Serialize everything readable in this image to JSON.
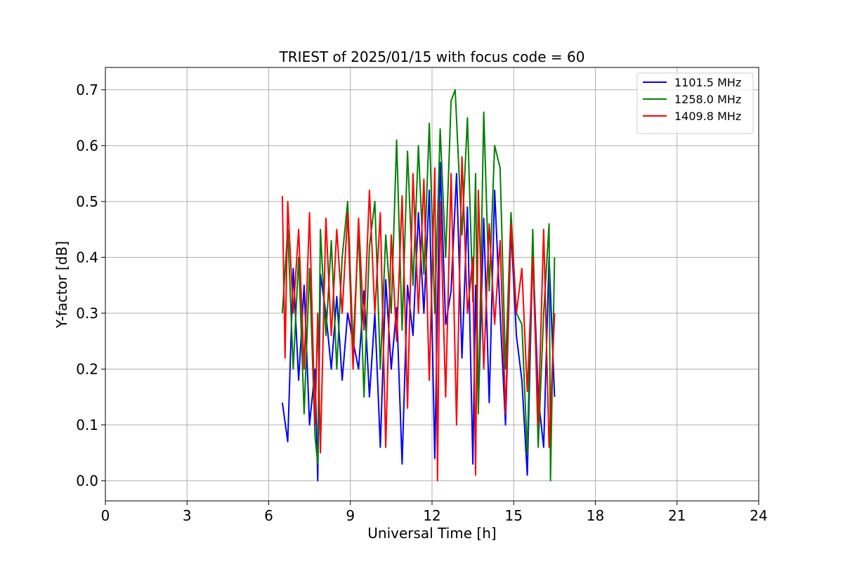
{
  "chart_data": {
    "type": "line",
    "title": "TRIEST of 2025/01/15 with focus code = 60",
    "xlabel": "Universal Time [h]",
    "ylabel": "Y-factor [dB]",
    "xlim": [
      0,
      24
    ],
    "ylim": [
      -0.036,
      0.74
    ],
    "x_ticks": [
      0,
      3,
      6,
      9,
      12,
      15,
      18,
      21,
      24
    ],
    "y_ticks": [
      0.0,
      0.1,
      0.2,
      0.3,
      0.4,
      0.5,
      0.6,
      0.7
    ],
    "y_tick_labels": [
      "0.0",
      "0.1",
      "0.2",
      "0.3",
      "0.4",
      "0.5",
      "0.6",
      "0.7"
    ],
    "grid": true,
    "legend_position": "top-right",
    "series": [
      {
        "name": "1101.5 MHz",
        "color": "#0000ff",
        "x": [
          6.5,
          6.7,
          6.9,
          7.1,
          7.3,
          7.5,
          7.7,
          7.8,
          7.9,
          8.1,
          8.3,
          8.5,
          8.7,
          8.9,
          9.1,
          9.3,
          9.5,
          9.7,
          9.9,
          10.1,
          10.3,
          10.5,
          10.7,
          10.9,
          11.1,
          11.3,
          11.5,
          11.7,
          11.9,
          12.1,
          12.3,
          12.5,
          12.7,
          12.9,
          13.1,
          13.3,
          13.5,
          13.6,
          13.7,
          13.9,
          14.1,
          14.3,
          14.5,
          14.7,
          14.9,
          15.1,
          15.3,
          15.5,
          15.7,
          15.9,
          16.1,
          16.3,
          16.5
        ],
        "y": [
          0.14,
          0.07,
          0.38,
          0.18,
          0.35,
          0.1,
          0.2,
          0.0,
          0.37,
          0.3,
          0.2,
          0.33,
          0.18,
          0.3,
          0.25,
          0.2,
          0.34,
          0.15,
          0.3,
          0.06,
          0.36,
          0.2,
          0.31,
          0.03,
          0.35,
          0.26,
          0.48,
          0.3,
          0.52,
          0.04,
          0.57,
          0.28,
          0.34,
          0.55,
          0.22,
          0.49,
          0.03,
          0.35,
          0.13,
          0.47,
          0.14,
          0.52,
          0.3,
          0.1,
          0.45,
          0.26,
          0.18,
          0.01,
          0.42,
          0.15,
          0.06,
          0.4,
          0.15
        ]
      },
      {
        "name": "1258.0 MHz",
        "color": "#008000",
        "x": [
          6.5,
          6.7,
          6.9,
          7.1,
          7.3,
          7.5,
          7.7,
          7.8,
          7.9,
          8.1,
          8.3,
          8.5,
          8.7,
          8.9,
          9.1,
          9.3,
          9.5,
          9.7,
          9.9,
          10.1,
          10.3,
          10.5,
          10.7,
          10.9,
          11.1,
          11.3,
          11.5,
          11.7,
          11.9,
          12.1,
          12.3,
          12.5,
          12.7,
          12.85,
          13.1,
          13.3,
          13.5,
          13.6,
          13.7,
          13.9,
          14.1,
          14.3,
          14.5,
          14.7,
          14.9,
          15.1,
          15.3,
          15.5,
          15.7,
          15.9,
          16.1,
          16.3,
          16.35,
          16.5
        ],
        "y": [
          0.3,
          0.45,
          0.2,
          0.4,
          0.12,
          0.38,
          0.08,
          0.03,
          0.45,
          0.26,
          0.43,
          0.2,
          0.4,
          0.5,
          0.24,
          0.45,
          0.15,
          0.42,
          0.5,
          0.2,
          0.44,
          0.3,
          0.61,
          0.27,
          0.59,
          0.35,
          0.6,
          0.37,
          0.64,
          0.3,
          0.63,
          0.4,
          0.68,
          0.7,
          0.44,
          0.65,
          0.32,
          0.55,
          0.12,
          0.66,
          0.34,
          0.6,
          0.56,
          0.2,
          0.48,
          0.3,
          0.28,
          0.05,
          0.45,
          0.06,
          0.3,
          0.46,
          0.0,
          0.4
        ]
      },
      {
        "name": "1409.8 MHz",
        "color": "#ff0000",
        "x": [
          6.5,
          6.6,
          6.7,
          6.9,
          7.1,
          7.3,
          7.5,
          7.7,
          7.8,
          7.9,
          8.1,
          8.3,
          8.5,
          8.7,
          8.9,
          9.1,
          9.3,
          9.5,
          9.7,
          9.9,
          10.1,
          10.3,
          10.5,
          10.7,
          10.9,
          11.1,
          11.3,
          11.5,
          11.7,
          11.9,
          12.1,
          12.2,
          12.3,
          12.5,
          12.7,
          12.9,
          13.1,
          13.3,
          13.5,
          13.6,
          13.7,
          13.9,
          14.1,
          14.3,
          14.5,
          14.7,
          14.9,
          15.1,
          15.3,
          15.5,
          15.7,
          15.9,
          16.1,
          16.3,
          16.5
        ],
        "y": [
          0.51,
          0.22,
          0.5,
          0.3,
          0.45,
          0.2,
          0.48,
          0.1,
          0.3,
          0.05,
          0.47,
          0.26,
          0.45,
          0.3,
          0.48,
          0.2,
          0.47,
          0.27,
          0.52,
          0.3,
          0.48,
          0.06,
          0.44,
          0.25,
          0.51,
          0.13,
          0.55,
          0.3,
          0.54,
          0.18,
          0.56,
          0.0,
          0.5,
          0.15,
          0.55,
          0.1,
          0.58,
          0.3,
          0.4,
          0.01,
          0.52,
          0.2,
          0.46,
          0.28,
          0.43,
          0.12,
          0.46,
          0.3,
          0.38,
          0.16,
          0.4,
          0.1,
          0.45,
          0.06,
          0.3
        ]
      }
    ]
  }
}
